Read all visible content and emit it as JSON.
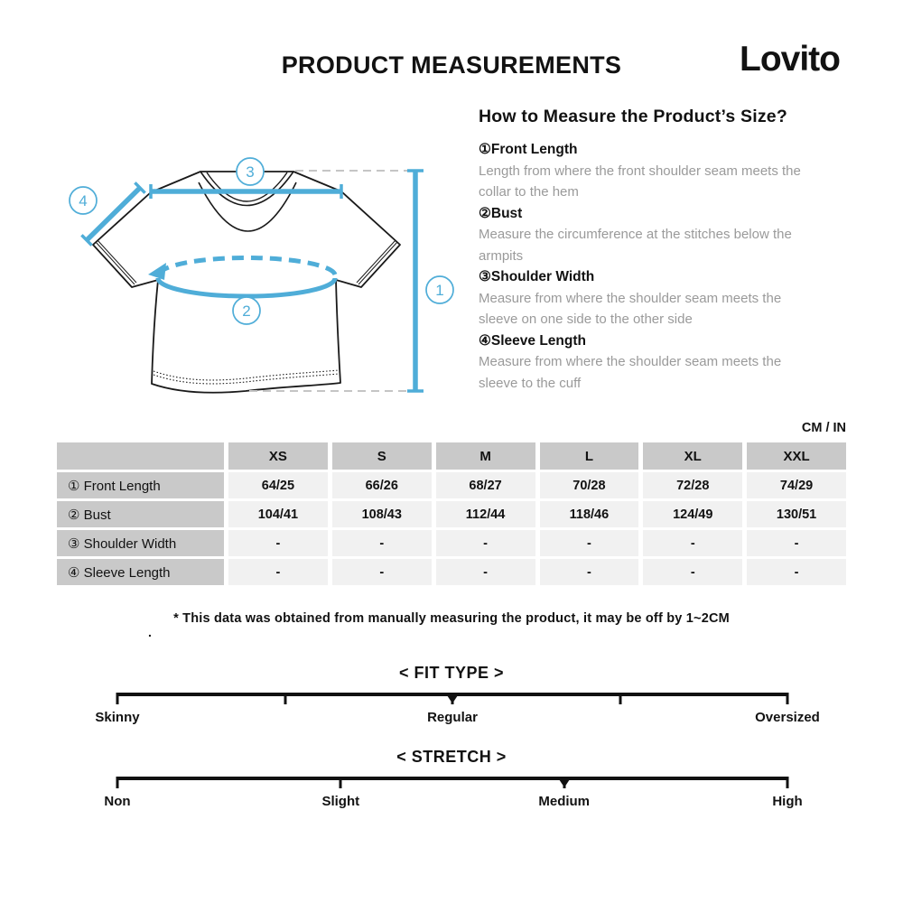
{
  "header": {
    "title": "PRODUCT MEASUREMENTS",
    "brand": "Lovito"
  },
  "guide": {
    "heading": "How to Measure the Product’s Size?",
    "items": [
      {
        "label": "①Front Length",
        "desc": "Length from where the front shoulder seam meets the collar to the hem"
      },
      {
        "label": "②Bust",
        "desc": "Measure the circumference at the stitches below the armpits"
      },
      {
        "label": "③Shoulder Width",
        "desc": "Measure from where the shoulder seam meets the sleeve on one side to the other side"
      },
      {
        "label": "④Sleeve Length",
        "desc": "Measure from where the shoulder seam meets the sleeve to the cuff"
      }
    ]
  },
  "diagram": {
    "accent_color": "#4FADD8",
    "callouts": [
      "1",
      "2",
      "3",
      "4"
    ]
  },
  "table": {
    "unit_label": "CM / IN",
    "columns": [
      "XS",
      "S",
      "M",
      "L",
      "XL",
      "XXL"
    ],
    "rows": [
      {
        "label": "① Front Length",
        "values": [
          "64/25",
          "66/26",
          "68/27",
          "70/28",
          "72/28",
          "74/29"
        ]
      },
      {
        "label": "② Bust",
        "values": [
          "104/41",
          "108/43",
          "112/44",
          "118/46",
          "124/49",
          "130/51"
        ]
      },
      {
        "label": "③ Shoulder Width",
        "values": [
          "-",
          "-",
          "-",
          "-",
          "-",
          "-"
        ]
      },
      {
        "label": "④ Sleeve Length",
        "values": [
          "-",
          "-",
          "-",
          "-",
          "-",
          "-"
        ]
      }
    ]
  },
  "disclaimer": "* This data was obtained from manually measuring the product, it may be off by 1~2CM",
  "stray_mark": ".",
  "scales": [
    {
      "title": "< FIT TYPE >",
      "ticks_pct": [
        0,
        25,
        50,
        75,
        100
      ],
      "marker_pct": 50,
      "labels": [
        {
          "text": "Skinny",
          "pct": 0
        },
        {
          "text": "Regular",
          "pct": 50
        },
        {
          "text": "Oversized",
          "pct": 100
        }
      ]
    },
    {
      "title": "< STRETCH >",
      "ticks_pct": [
        0,
        33.33,
        66.67,
        100
      ],
      "marker_pct": 66.67,
      "labels": [
        {
          "text": "Non",
          "pct": 0
        },
        {
          "text": "Slight",
          "pct": 33.33
        },
        {
          "text": "Medium",
          "pct": 66.67
        },
        {
          "text": "High",
          "pct": 100
        }
      ]
    }
  ]
}
